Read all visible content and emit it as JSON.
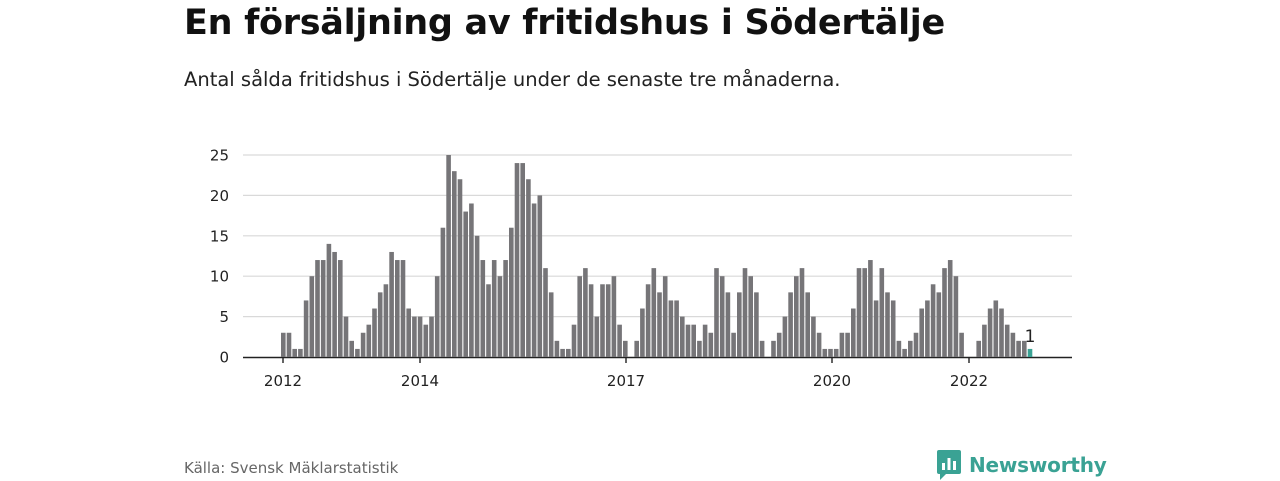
{
  "title": "En försäljning av fritidshus i Södertälje",
  "subtitle": "Antal sålda fritidshus i Södertälje under de senaste tre månaderna.",
  "source": "Källa: Svensk Mäklarstatistik",
  "brand": {
    "name": "Newsworthy",
    "logo_icon": "newsworthy-logo-icon",
    "color": "#3aa294"
  },
  "chart_data": {
    "type": "bar",
    "title": "",
    "xlabel": "",
    "ylabel": "",
    "ylim": [
      0,
      25
    ],
    "yticks": [
      "0",
      "5",
      "10",
      "15",
      "20",
      "25"
    ],
    "xticks": [
      "2012",
      "2014",
      "2017",
      "2020",
      "2022"
    ],
    "grid": true,
    "bar_color": "#767578",
    "highlight_color": "#3aa294",
    "highlight_label": "1",
    "values": [
      3,
      3,
      1,
      1,
      7,
      10,
      12,
      12,
      14,
      13,
      12,
      5,
      2,
      1,
      3,
      4,
      6,
      8,
      9,
      13,
      12,
      12,
      6,
      5,
      5,
      4,
      5,
      10,
      16,
      25,
      23,
      22,
      18,
      19,
      15,
      12,
      9,
      12,
      10,
      12,
      16,
      24,
      24,
      22,
      19,
      20,
      11,
      8,
      2,
      1,
      1,
      4,
      10,
      11,
      9,
      5,
      9,
      9,
      10,
      4,
      2,
      0,
      2,
      6,
      9,
      11,
      8,
      10,
      7,
      7,
      5,
      4,
      4,
      2,
      4,
      3,
      11,
      10,
      8,
      3,
      8,
      11,
      10,
      8,
      2,
      0,
      2,
      3,
      5,
      8,
      10,
      11,
      8,
      5,
      3,
      1,
      1,
      1,
      3,
      3,
      6,
      11,
      11,
      12,
      7,
      11,
      8,
      7,
      2,
      1,
      2,
      3,
      6,
      7,
      9,
      8,
      11,
      12,
      10,
      3,
      0,
      0,
      2,
      4,
      6,
      7,
      6,
      4,
      3,
      2,
      2,
      1
    ]
  }
}
